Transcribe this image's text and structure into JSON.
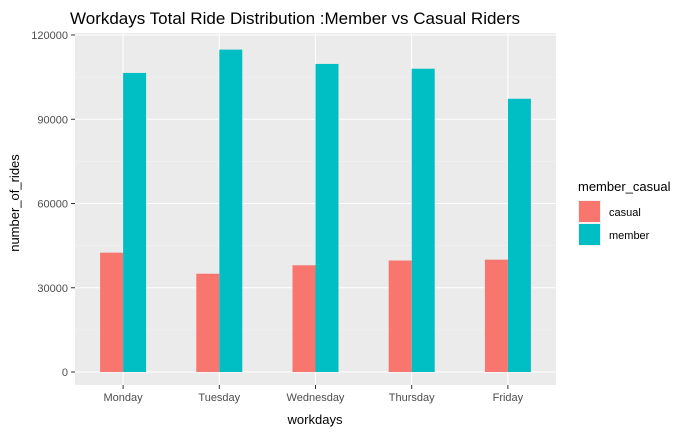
{
  "chart_data": {
    "type": "bar",
    "title": "Workdays Total Ride Distribution :Member vs Casual Riders",
    "xlabel": "workdays",
    "ylabel": "number_of_rides",
    "categories": [
      "Monday",
      "Tuesday",
      "Wednesday",
      "Thursday",
      "Friday"
    ],
    "series": [
      {
        "name": "casual",
        "color": "#F8766D",
        "values": [
          42500,
          35000,
          38000,
          39700,
          40000
        ]
      },
      {
        "name": "member",
        "color": "#00BFC4",
        "values": [
          106500,
          114800,
          109700,
          108000,
          97300
        ]
      }
    ],
    "ylim": [
      -5000,
      120000
    ],
    "yticks": [
      0,
      30000,
      60000,
      90000,
      120000
    ],
    "ytick_labels": [
      "0",
      "30000",
      "60000",
      "90000",
      "120000"
    ],
    "legend": {
      "title": "member_casual",
      "placement": "right"
    },
    "grid": true,
    "panel_background": "#EBEBEB"
  }
}
